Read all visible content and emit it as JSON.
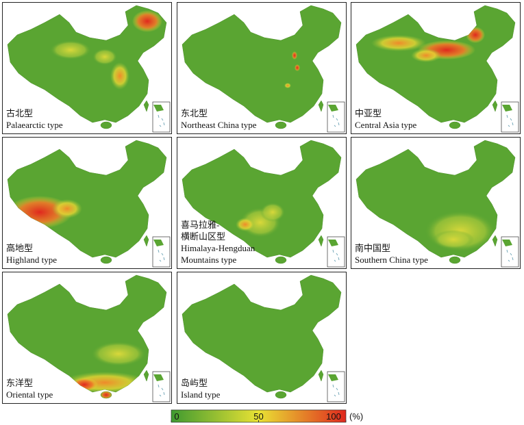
{
  "panels": [
    {
      "lines": [
        "古北型",
        "Palaearctic type"
      ]
    },
    {
      "lines": [
        "东北型",
        "Northeast China type"
      ]
    },
    {
      "lines": [
        "中亚型",
        "Central Asia type"
      ]
    },
    {
      "lines": [
        "高地型",
        "Highland type"
      ]
    },
    {
      "lines": [
        "喜马拉雅-",
        "横断山区型",
        "Himalaya-Hengduan",
        "Mountains type"
      ]
    },
    {
      "lines": [
        "南中国型",
        "Southern China type"
      ]
    },
    {
      "lines": [
        "东洋型",
        "Oriental type"
      ]
    },
    {
      "lines": [
        "岛屿型",
        "Island type"
      ]
    }
  ],
  "colorbar": {
    "range": [
      0,
      100
    ],
    "ticks": [
      0,
      50,
      100
    ],
    "unit": "(%)",
    "colors": [
      "#3f9a30",
      "#e9e234",
      "#e0281e"
    ]
  }
}
